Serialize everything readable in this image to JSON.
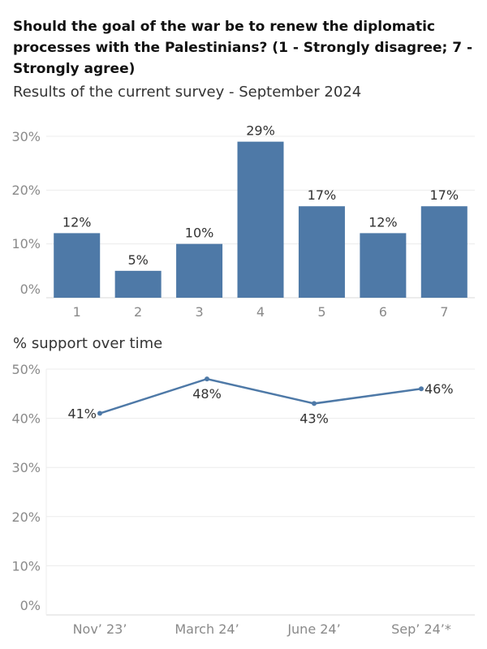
{
  "header": {
    "title": "Should the goal of the war be to renew the diplomatic processes with the Palestinians? (1 - Strongly disagree; 7 - Strongly agree)",
    "subtitle": "Results of the current survey - September 2024"
  },
  "trend_section": {
    "label": "% support over time"
  },
  "colors": {
    "bar": "#4e79a7",
    "line": "#4e79a7"
  },
  "chart_data": [
    {
      "type": "bar",
      "categories": [
        "1",
        "2",
        "3",
        "4",
        "5",
        "6",
        "7"
      ],
      "values": [
        12,
        5,
        10,
        29,
        17,
        12,
        17
      ],
      "value_labels": [
        "12%",
        "5%",
        "10%",
        "29%",
        "17%",
        "12%",
        "17%"
      ],
      "ylim": [
        0,
        30
      ],
      "yticks": [
        0,
        10,
        20,
        30
      ],
      "ytick_labels": [
        "0%",
        "10%",
        "20%",
        "30%"
      ],
      "grid": true
    },
    {
      "type": "line",
      "categories": [
        "Nov’ 23’",
        "March 24’",
        "June 24’",
        "Sep’ 24’*"
      ],
      "values": [
        41,
        48,
        43,
        46
      ],
      "value_labels": [
        "41%",
        "48%",
        "43%",
        "46%"
      ],
      "ylim": [
        0,
        50
      ],
      "yticks": [
        0,
        10,
        20,
        30,
        40,
        50
      ],
      "ytick_labels": [
        "0%",
        "10%",
        "20%",
        "30%",
        "40%",
        "50%"
      ],
      "grid": true
    }
  ]
}
